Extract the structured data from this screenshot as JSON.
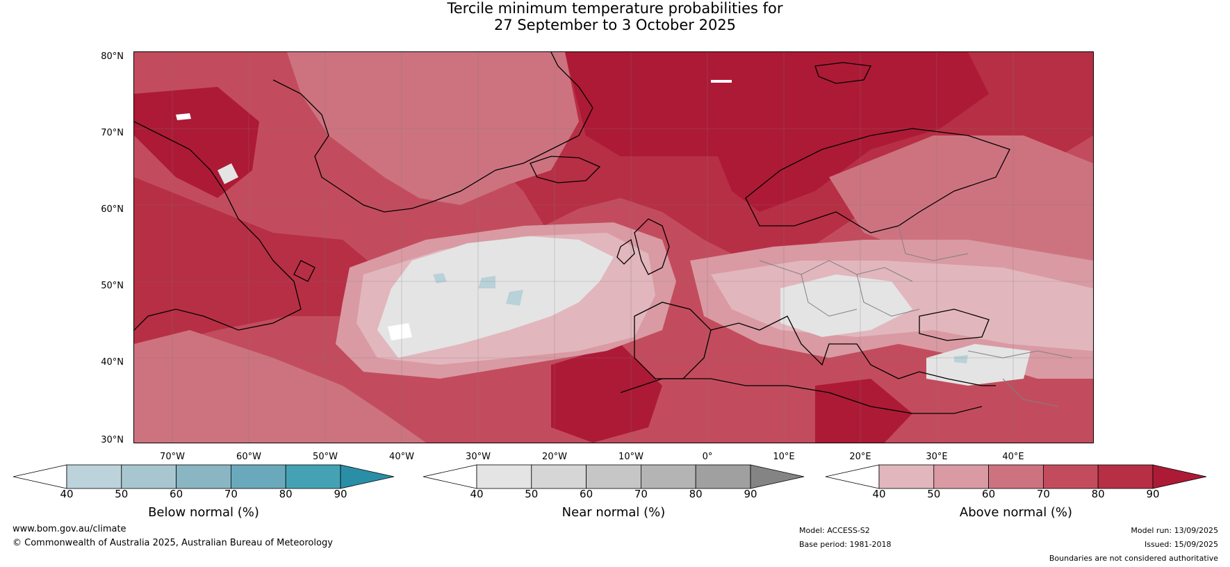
{
  "title": {
    "line1": "Tercile minimum temperature probabilities for",
    "line2": "27 September to 3 October 2025"
  },
  "map": {
    "lat_labels": [
      "80°N",
      "70°N",
      "60°N",
      "50°N",
      "40°N",
      "30°N"
    ],
    "lon_labels": [
      "70°W",
      "60°W",
      "50°W",
      "40°W",
      "30°W",
      "20°W",
      "10°W",
      "0°",
      "10°E",
      "20°E",
      "30°E",
      "40°E"
    ],
    "colors": {
      "above_40": "#e2b6bd",
      "above_50": "#d99aa3",
      "above_60": "#cd7380",
      "above_70": "#c24c5d",
      "above_80": "#b72f45",
      "above_90": "#ad1a36",
      "near": "#e4e4e4",
      "below": "#b9d1d9",
      "coast": "#000000",
      "border": "#808080"
    }
  },
  "colorbars": [
    {
      "name": "below",
      "title": "Below normal (%)",
      "ticks": [
        "40",
        "50",
        "60",
        "70",
        "80",
        "90"
      ],
      "colors": [
        "#ffffff",
        "#bcd3db",
        "#a8c6cf",
        "#8ab5c3",
        "#6aa9bb",
        "#45a2b5",
        "#2a8ea6"
      ]
    },
    {
      "name": "near",
      "title": "Near normal (%)",
      "ticks": [
        "40",
        "50",
        "60",
        "70",
        "80",
        "90"
      ],
      "colors": [
        "#ffffff",
        "#e4e4e4",
        "#d6d6d6",
        "#c6c6c6",
        "#b4b4b4",
        "#a0a0a0",
        "#848484"
      ]
    },
    {
      "name": "above",
      "title": "Above normal (%)",
      "ticks": [
        "40",
        "50",
        "60",
        "70",
        "80",
        "90"
      ],
      "colors": [
        "#ffffff",
        "#e2b6bd",
        "#d99aa3",
        "#cd7380",
        "#c24c5d",
        "#b72f45",
        "#ad1a36"
      ]
    }
  ],
  "footer": {
    "website": "www.bom.gov.au/climate",
    "copyright": "© Commonwealth of Australia 2025, Australian Bureau of Meteorology",
    "model": "Model: ACCESS-S2",
    "base_period": "Base period: 1981-2018",
    "model_run": "Model run: 13/09/2025",
    "issued": "Issued: 15/09/2025",
    "disclaimer": "Boundaries are not considered authoritative"
  }
}
